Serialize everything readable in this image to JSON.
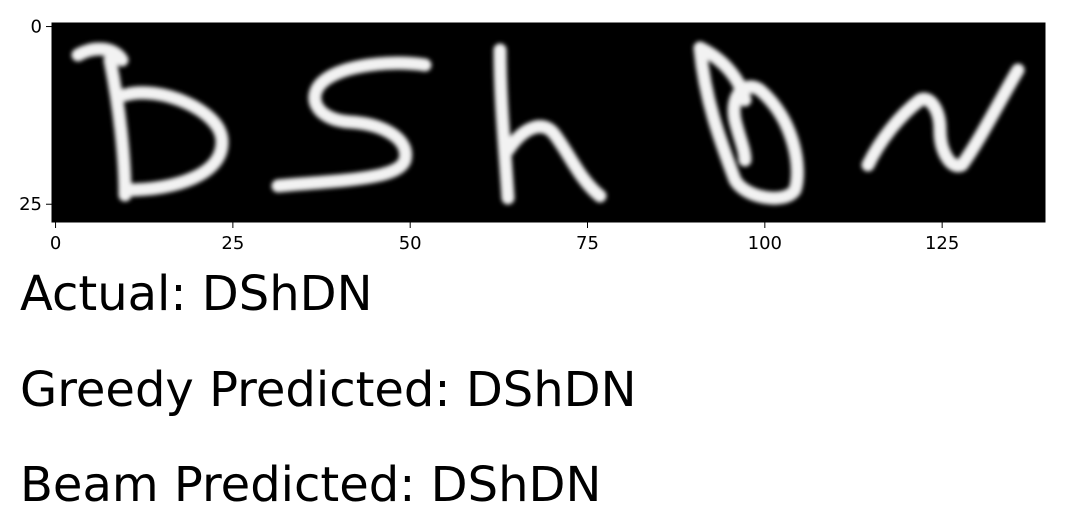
{
  "chart_data": {
    "type": "heatmap",
    "title": "",
    "xlabel": "",
    "ylabel": "",
    "colormap": "gray",
    "image_content": "DShDN",
    "image_width": 140,
    "image_height": 28,
    "xlim": [
      -0.5,
      139.5
    ],
    "ylim": [
      27.5,
      -0.5
    ],
    "x_ticks": [
      0,
      25,
      50,
      75,
      100,
      125
    ],
    "x_tick_labels": [
      "0",
      "25",
      "50",
      "75",
      "100",
      "125"
    ],
    "y_ticks": [
      0,
      25
    ],
    "y_tick_labels": [
      "0",
      "25"
    ],
    "background_color": "#000000",
    "stroke_color": "#f2f2f2"
  },
  "captions": {
    "actual": "Actual: DShDN",
    "greedy": "Greedy Predicted: DShDN",
    "beam": "Beam Predicted: DShDN"
  }
}
